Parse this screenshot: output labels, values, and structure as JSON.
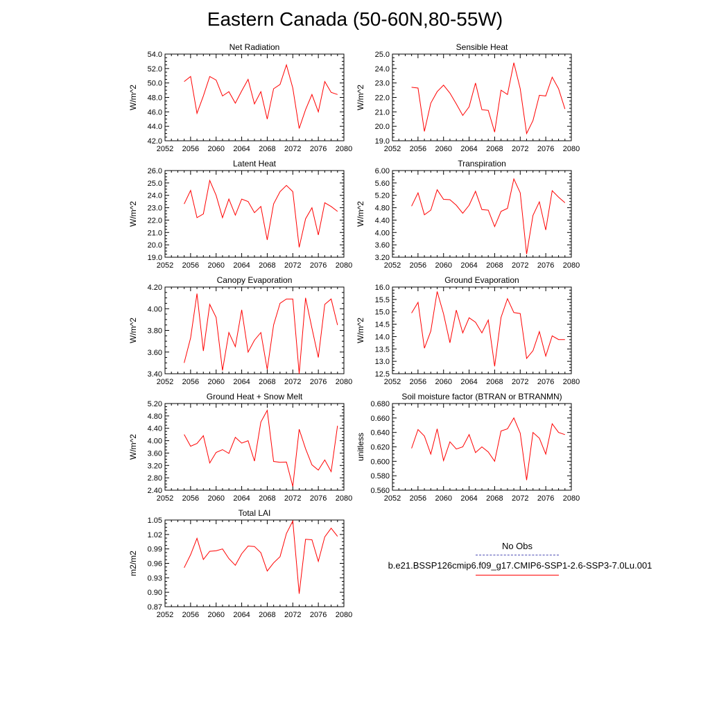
{
  "title": "Eastern Canada (50-60N,80-55W)",
  "legend": {
    "obs_label": "No Obs",
    "obs_color": "#4b4bb4",
    "case_label": "b.e21.BSSP126cmip6.f09_g17.CMIP6-SSP1-2.6-SSP3-7.0Lu.001",
    "case_color": "#ff0000"
  },
  "chart_data": [
    {
      "type": "line",
      "title": "Net Radiation",
      "ylabel": "W/m^2",
      "ylim": [
        42.0,
        54.0
      ],
      "yticks": [
        "42.0",
        "44.0",
        "46.0",
        "48.0",
        "50.0",
        "52.0",
        "54.0"
      ],
      "xlim": [
        2052,
        2080
      ],
      "xticks": [
        "2052",
        "2056",
        "2060",
        "2064",
        "2068",
        "2072",
        "2076",
        "2080"
      ],
      "x": [
        2055,
        2056,
        2057,
        2058,
        2059,
        2060,
        2061,
        2062,
        2063,
        2064,
        2065,
        2066,
        2067,
        2068,
        2069,
        2070,
        2071,
        2072,
        2073,
        2074,
        2075,
        2076,
        2077,
        2078,
        2079
      ],
      "series": [
        {
          "values": [
            50.2,
            50.9,
            45.8,
            48.2,
            50.9,
            50.4,
            48.2,
            48.8,
            47.2,
            48.9,
            50.5,
            47.1,
            48.8,
            45.0,
            49.2,
            49.8,
            52.5,
            49.3,
            43.7,
            46.3,
            48.4,
            46.0,
            50.2,
            48.7,
            48.4
          ]
        }
      ]
    },
    {
      "type": "line",
      "title": "Sensible Heat",
      "ylabel": "W/m^2",
      "ylim": [
        19.0,
        25.0
      ],
      "yticks": [
        "19.0",
        "20.0",
        "21.0",
        "22.0",
        "23.0",
        "24.0",
        "25.0"
      ],
      "xlim": [
        2052,
        2080
      ],
      "xticks": [
        "2052",
        "2056",
        "2060",
        "2064",
        "2068",
        "2072",
        "2076",
        "2080"
      ],
      "x": [
        2055,
        2056,
        2057,
        2058,
        2059,
        2060,
        2061,
        2062,
        2063,
        2064,
        2065,
        2066,
        2067,
        2068,
        2069,
        2070,
        2071,
        2072,
        2073,
        2074,
        2075,
        2076,
        2077,
        2078,
        2079
      ],
      "series": [
        {
          "values": [
            22.7,
            22.65,
            19.65,
            21.6,
            22.4,
            22.85,
            22.3,
            21.55,
            20.75,
            21.35,
            23.0,
            21.15,
            21.1,
            19.6,
            22.5,
            22.2,
            24.4,
            22.6,
            19.5,
            20.4,
            22.15,
            22.1,
            23.4,
            22.6,
            21.2
          ]
        }
      ]
    },
    {
      "type": "line",
      "title": "Latent Heat",
      "ylabel": "W/m^2",
      "ylim": [
        19.0,
        26.0
      ],
      "yticks": [
        "19.0",
        "20.0",
        "21.0",
        "22.0",
        "23.0",
        "24.0",
        "25.0",
        "26.0"
      ],
      "xlim": [
        2052,
        2080
      ],
      "xticks": [
        "2052",
        "2056",
        "2060",
        "2064",
        "2068",
        "2072",
        "2076",
        "2080"
      ],
      "x": [
        2055,
        2056,
        2057,
        2058,
        2059,
        2060,
        2061,
        2062,
        2063,
        2064,
        2065,
        2066,
        2067,
        2068,
        2069,
        2070,
        2071,
        2072,
        2073,
        2074,
        2075,
        2076,
        2077,
        2078,
        2079
      ],
      "series": [
        {
          "values": [
            23.3,
            24.4,
            22.2,
            22.5,
            25.2,
            24.0,
            22.2,
            23.7,
            22.4,
            23.7,
            23.5,
            22.6,
            23.1,
            20.4,
            23.3,
            24.3,
            24.8,
            24.3,
            19.8,
            22.1,
            23.0,
            20.8,
            23.4,
            23.1,
            22.7
          ]
        }
      ]
    },
    {
      "type": "line",
      "title": "Transpiration",
      "ylabel": "W/m^2",
      "ylim": [
        3.2,
        6.0
      ],
      "yticks": [
        "3.20",
        "3.60",
        "4.00",
        "4.40",
        "4.80",
        "5.20",
        "5.60",
        "6.00"
      ],
      "xlim": [
        2052,
        2080
      ],
      "xticks": [
        "2052",
        "2056",
        "2060",
        "2064",
        "2068",
        "2072",
        "2076",
        "2080"
      ],
      "x": [
        2055,
        2056,
        2057,
        2058,
        2059,
        2060,
        2061,
        2062,
        2063,
        2064,
        2065,
        2066,
        2067,
        2068,
        2069,
        2070,
        2071,
        2072,
        2073,
        2074,
        2075,
        2076,
        2077,
        2078,
        2079
      ],
      "series": [
        {
          "values": [
            4.85,
            5.28,
            4.57,
            4.72,
            5.38,
            5.07,
            5.06,
            4.88,
            4.62,
            4.88,
            5.33,
            4.74,
            4.72,
            4.19,
            4.68,
            4.78,
            5.73,
            5.28,
            3.3,
            4.55,
            4.99,
            4.08,
            5.35,
            5.14,
            4.96
          ]
        }
      ]
    },
    {
      "type": "line",
      "title": "Canopy Evaporation",
      "ylabel": "W/m^2",
      "ylim": [
        3.4,
        4.2
      ],
      "yticks": [
        "3.40",
        "3.60",
        "3.80",
        "4.00",
        "4.20"
      ],
      "xlim": [
        2052,
        2080
      ],
      "xticks": [
        "2052",
        "2056",
        "2060",
        "2064",
        "2068",
        "2072",
        "2076",
        "2080"
      ],
      "x": [
        2055,
        2056,
        2057,
        2058,
        2059,
        2060,
        2061,
        2062,
        2063,
        2064,
        2065,
        2066,
        2067,
        2068,
        2069,
        2070,
        2071,
        2072,
        2073,
        2074,
        2075,
        2076,
        2077,
        2078,
        2079
      ],
      "series": [
        {
          "values": [
            3.5,
            3.73,
            4.14,
            3.61,
            4.04,
            3.92,
            3.43,
            3.78,
            3.65,
            3.99,
            3.6,
            3.71,
            3.78,
            3.44,
            3.85,
            4.05,
            4.09,
            4.09,
            3.4,
            4.1,
            3.82,
            3.55,
            4.04,
            4.09,
            3.85
          ]
        }
      ]
    },
    {
      "type": "line",
      "title": "Ground Evaporation",
      "ylabel": "W/m^2",
      "ylim": [
        12.5,
        16.0
      ],
      "yticks": [
        "12.5",
        "13.0",
        "13.5",
        "14.0",
        "14.5",
        "15.0",
        "15.5",
        "16.0"
      ],
      "xlim": [
        2052,
        2080
      ],
      "xticks": [
        "2052",
        "2056",
        "2060",
        "2064",
        "2068",
        "2072",
        "2076",
        "2080"
      ],
      "x": [
        2055,
        2056,
        2057,
        2058,
        2059,
        2060,
        2061,
        2062,
        2063,
        2064,
        2065,
        2066,
        2067,
        2068,
        2069,
        2070,
        2071,
        2072,
        2073,
        2074,
        2075,
        2076,
        2077,
        2078,
        2079
      ],
      "series": [
        {
          "values": [
            14.95,
            15.38,
            13.53,
            14.22,
            15.82,
            14.92,
            13.75,
            15.07,
            14.15,
            14.76,
            14.58,
            14.15,
            14.67,
            12.8,
            14.77,
            15.53,
            14.97,
            14.93,
            13.12,
            13.43,
            14.2,
            13.21,
            14.03,
            13.88,
            13.88
          ]
        }
      ]
    },
    {
      "type": "line",
      "title": "Ground Heat + Snow Melt",
      "ylabel": "W/m^2",
      "ylim": [
        2.4,
        5.2
      ],
      "yticks": [
        "2.40",
        "2.80",
        "3.20",
        "3.60",
        "4.00",
        "4.40",
        "4.80",
        "5.20"
      ],
      "xlim": [
        2052,
        2080
      ],
      "xticks": [
        "2052",
        "2056",
        "2060",
        "2064",
        "2068",
        "2072",
        "2076",
        "2080"
      ],
      "x": [
        2055,
        2056,
        2057,
        2058,
        2059,
        2060,
        2061,
        2062,
        2063,
        2064,
        2065,
        2066,
        2067,
        2068,
        2069,
        2070,
        2071,
        2072,
        2073,
        2074,
        2075,
        2076,
        2077,
        2078,
        2079
      ],
      "series": [
        {
          "values": [
            4.2,
            3.82,
            3.91,
            4.16,
            3.28,
            3.62,
            3.71,
            3.59,
            4.11,
            3.92,
            4.0,
            3.34,
            4.6,
            4.98,
            3.33,
            3.3,
            3.31,
            2.52,
            4.37,
            3.74,
            3.22,
            3.05,
            3.38,
            3.0,
            4.48
          ]
        }
      ]
    },
    {
      "type": "line",
      "title": "Soil moisture factor (BTRAN or BTRANMN)",
      "ylabel": "unitless",
      "ylim": [
        0.56,
        0.68
      ],
      "yticks": [
        "0.560",
        "0.580",
        "0.600",
        "0.620",
        "0.640",
        "0.660",
        "0.680"
      ],
      "xlim": [
        2052,
        2080
      ],
      "xticks": [
        "2052",
        "2056",
        "2060",
        "2064",
        "2068",
        "2072",
        "2076",
        "2080"
      ],
      "x": [
        2055,
        2056,
        2057,
        2058,
        2059,
        2060,
        2061,
        2062,
        2063,
        2064,
        2065,
        2066,
        2067,
        2068,
        2069,
        2070,
        2071,
        2072,
        2073,
        2074,
        2075,
        2076,
        2077,
        2078,
        2079
      ],
      "series": [
        {
          "values": [
            0.618,
            0.644,
            0.635,
            0.61,
            0.645,
            0.601,
            0.627,
            0.617,
            0.62,
            0.637,
            0.612,
            0.62,
            0.613,
            0.6,
            0.642,
            0.645,
            0.66,
            0.639,
            0.574,
            0.64,
            0.632,
            0.61,
            0.652,
            0.64,
            0.637
          ]
        }
      ]
    },
    {
      "type": "line",
      "title": "Total LAI",
      "ylabel": "m2/m2",
      "ylim": [
        0.87,
        1.05
      ],
      "yticks": [
        "0.87",
        "0.90",
        "0.93",
        "0.96",
        "0.99",
        "1.02",
        "1.05"
      ],
      "xlim": [
        2052,
        2080
      ],
      "xticks": [
        "2052",
        "2056",
        "2060",
        "2064",
        "2068",
        "2072",
        "2076",
        "2080"
      ],
      "x": [
        2055,
        2056,
        2057,
        2058,
        2059,
        2060,
        2061,
        2062,
        2063,
        2064,
        2065,
        2066,
        2067,
        2068,
        2069,
        2070,
        2071,
        2072,
        2073,
        2074,
        2075,
        2076,
        2077,
        2078,
        2079
      ],
      "series": [
        {
          "values": [
            0.951,
            0.978,
            1.012,
            0.968,
            0.985,
            0.986,
            0.99,
            0.97,
            0.956,
            0.98,
            0.996,
            0.995,
            0.982,
            0.944,
            0.961,
            0.974,
            1.022,
            1.048,
            0.897,
            1.01,
            1.009,
            0.964,
            1.015,
            1.033,
            1.016
          ]
        }
      ]
    }
  ]
}
